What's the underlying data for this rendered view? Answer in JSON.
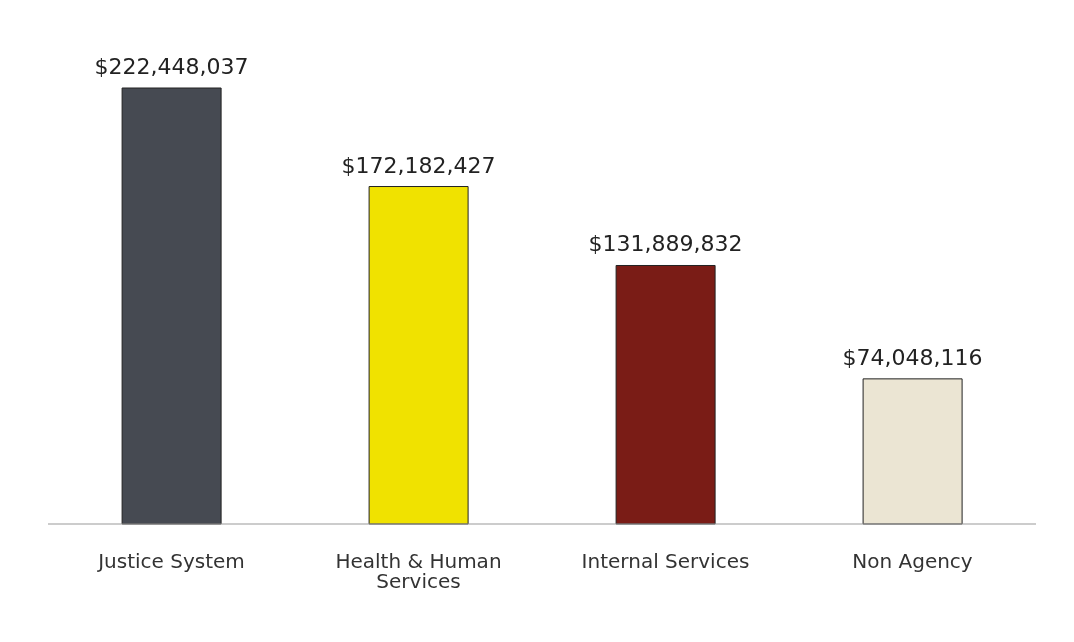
{
  "chart_data": {
    "type": "bar",
    "categories": [
      "Justice System",
      "Health & Human Services",
      "Internal Services",
      "Non Agency"
    ],
    "values": [
      222448037,
      172182427,
      131889832,
      74048116
    ],
    "value_labels": [
      "$222,448,037",
      "$172,182,427",
      "$131,889,832",
      "$74,048,116"
    ],
    "colors": [
      "#464a52",
      "#f0e200",
      "#7a1c16",
      "#ebe5d3"
    ],
    "legend": false,
    "grid": false
  }
}
